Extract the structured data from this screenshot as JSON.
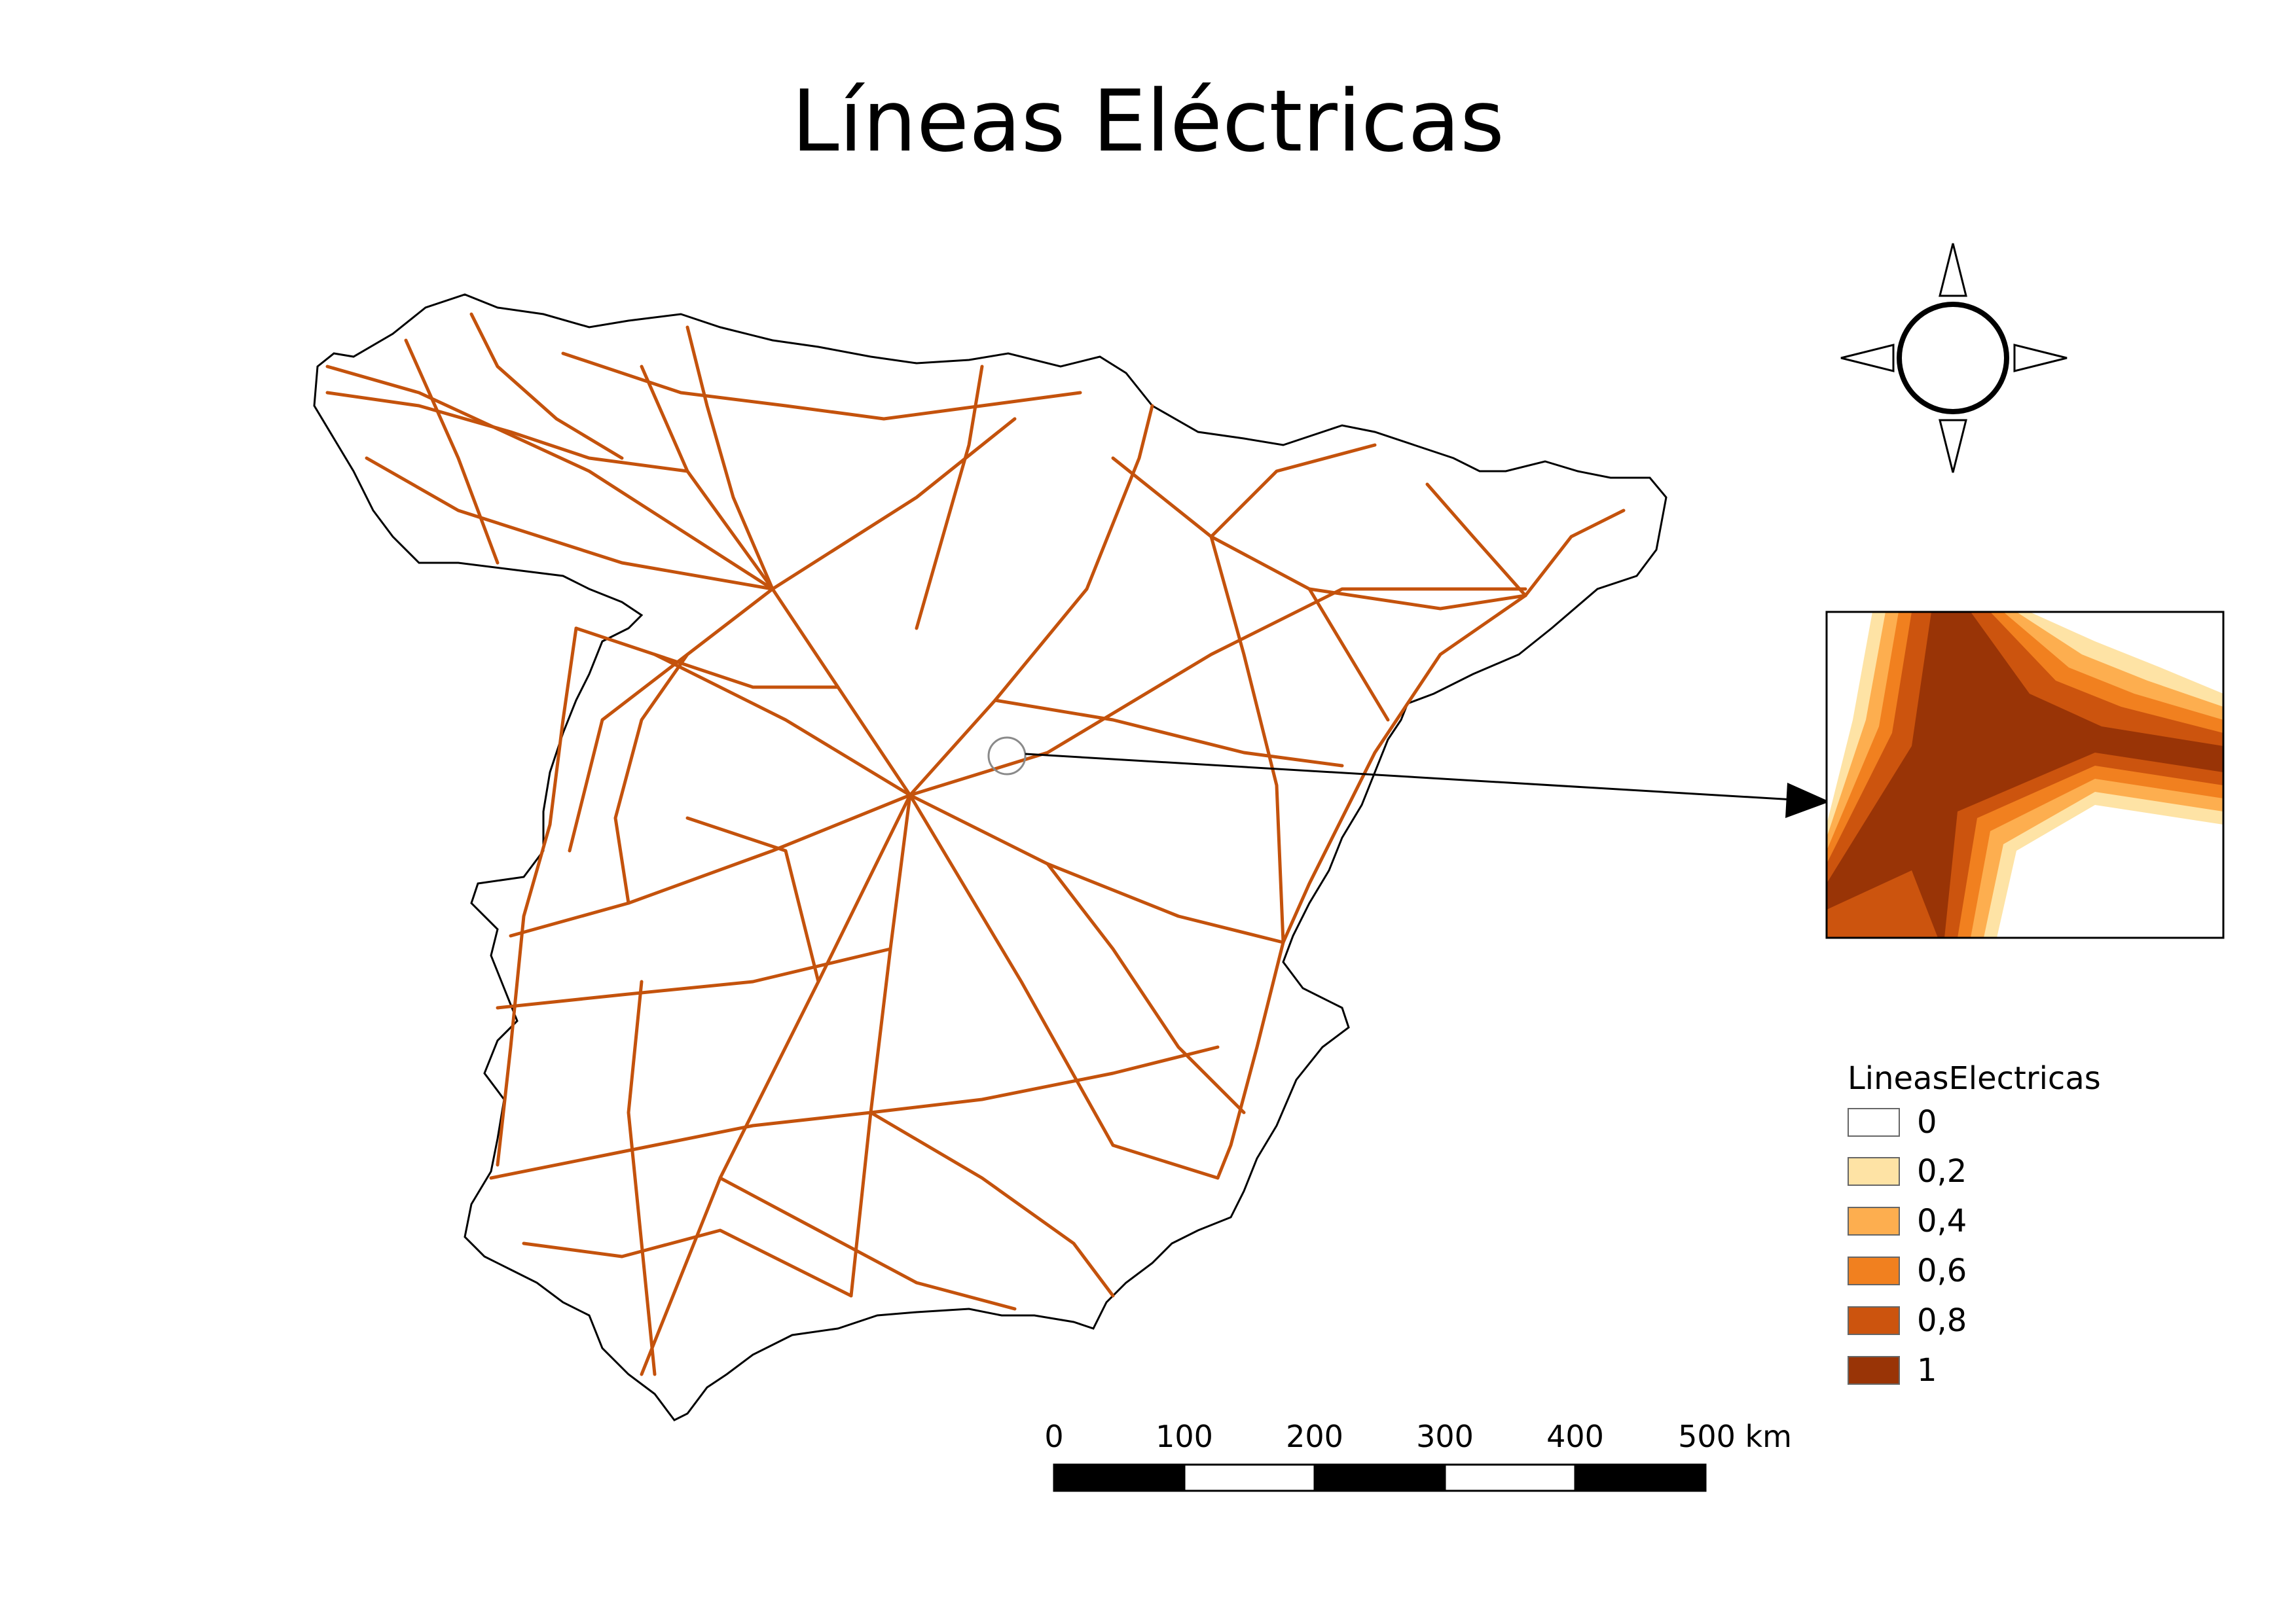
{
  "title": "Líneas Eléctricas",
  "legend": {
    "title": "LineasElectricas",
    "items": [
      {
        "label": "0",
        "color": "#ffffff"
      },
      {
        "label": "0,2",
        "color": "#fee3a5"
      },
      {
        "label": "0,4",
        "color": "#fdae4f"
      },
      {
        "label": "0,6",
        "color": "#f1801f"
      },
      {
        "label": "0,8",
        "color": "#cc540e"
      },
      {
        "label": "1",
        "color": "#993406"
      }
    ]
  },
  "scale_bar": {
    "labels": [
      "0",
      "100",
      "200",
      "300",
      "400",
      "500 km"
    ]
  },
  "colors": {
    "lines": "#c4520c",
    "outline": "#000000"
  }
}
